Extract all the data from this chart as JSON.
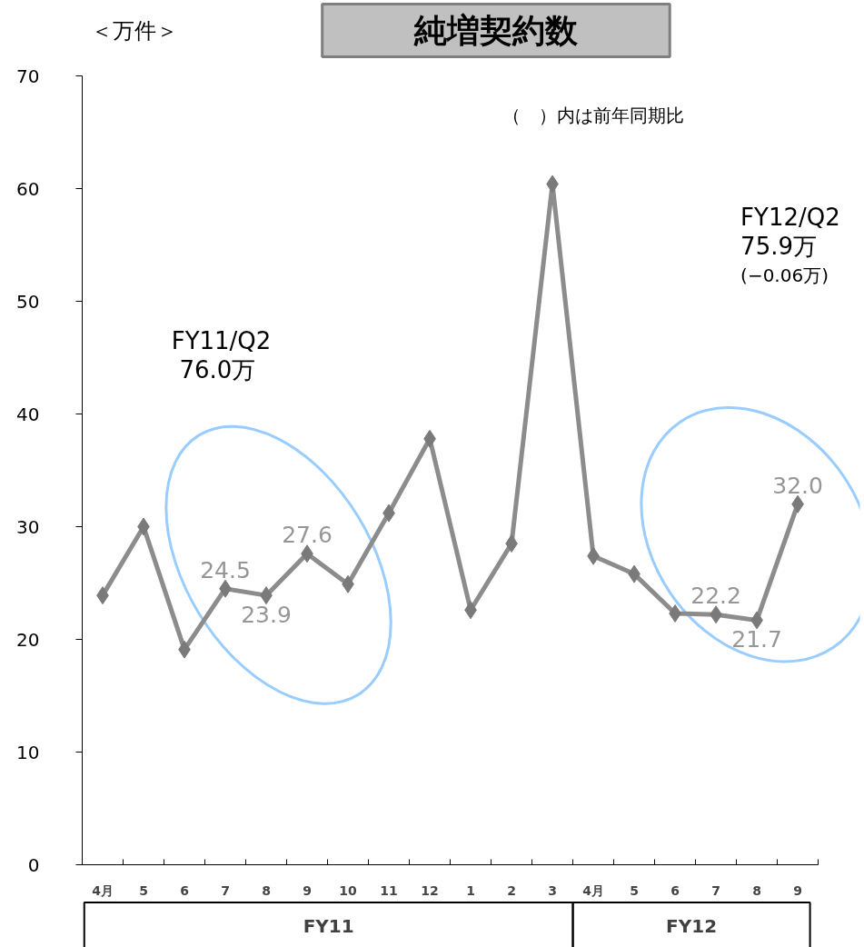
{
  "chart_data": {
    "type": "line",
    "title": "純増契約数",
    "ylabel": "＜万件＞",
    "categories": [
      "4月",
      "5",
      "6",
      "7",
      "8",
      "9",
      "10",
      "11",
      "12",
      "1",
      "2",
      "3",
      "4月",
      "5",
      "6",
      "7",
      "8",
      "9"
    ],
    "series": [
      {
        "color": "#8c8c8c",
        "values": [
          23.9,
          30.0,
          19.1,
          24.5,
          23.9,
          27.6,
          24.9,
          31.2,
          37.8,
          22.6,
          28.5,
          60.4,
          27.4,
          25.8,
          22.3,
          22.2,
          21.7,
          32.0
        ],
        "value_labels": [
          null,
          null,
          null,
          "24.5",
          "23.9",
          "27.6",
          null,
          null,
          null,
          null,
          null,
          null,
          null,
          null,
          null,
          "22.2",
          "21.7",
          "32.0"
        ]
      }
    ],
    "ylim": [
      0,
      70
    ],
    "yticks": [
      0,
      10,
      20,
      30,
      40,
      50,
      60,
      70
    ],
    "marker": "diamond",
    "line_style": "solid",
    "grid": false,
    "annotations": [
      "（　）内は前年同期比",
      "FY11/Q2\n 76.0万",
      "FY12/Q2\n  75.9万\n(−0.06万)",
      "FY11",
      "FY12"
    ]
  }
}
